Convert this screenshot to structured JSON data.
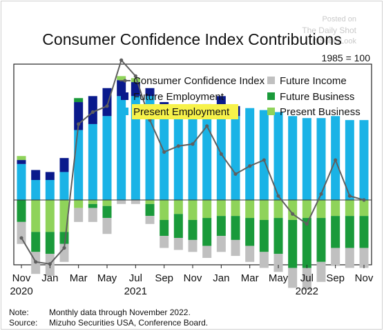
{
  "watermark": {
    "line1": "Posted on",
    "line2": "The Daily Shot",
    "line3": "@SoberLook"
  },
  "chart_data": {
    "type": "bar",
    "title": "Consumer Confidence Index Contributions",
    "subtitle": "1985 = 100",
    "months": [
      "Nov 2020",
      "Dec 2020",
      "Jan 2021",
      "Feb 2021",
      "Mar 2021",
      "Apr 2021",
      "May 2021",
      "Jun 2021",
      "Jul 2021",
      "Aug 2021",
      "Sep 2021",
      "Oct 2021",
      "Nov 2021",
      "Dec 2021",
      "Jan 2022",
      "Feb 2022",
      "Mar 2022",
      "Apr 2022",
      "May 2022",
      "Jun 2022",
      "Jul 2022",
      "Aug 2022",
      "Sep 2022",
      "Oct 2022",
      "Nov 2022"
    ],
    "x_ticks": [
      {
        "index": 0,
        "label": "Nov",
        "year": "2020"
      },
      {
        "index": 2,
        "label": "Jan",
        "year": ""
      },
      {
        "index": 4,
        "label": "Mar",
        "year": ""
      },
      {
        "index": 6,
        "label": "May",
        "year": ""
      },
      {
        "index": 8,
        "label": "Jul",
        "year": "2021"
      },
      {
        "index": 10,
        "label": "Sep",
        "year": ""
      },
      {
        "index": 12,
        "label": "Nov",
        "year": ""
      },
      {
        "index": 14,
        "label": "Jan",
        "year": ""
      },
      {
        "index": 16,
        "label": "Mar",
        "year": ""
      },
      {
        "index": 18,
        "label": "May",
        "year": ""
      },
      {
        "index": 20,
        "label": "Jul",
        "year": "2022"
      },
      {
        "index": 22,
        "label": "Sep",
        "year": ""
      },
      {
        "index": 24,
        "label": "Nov",
        "year": ""
      }
    ],
    "ylim": [
      -48,
      68
    ],
    "series": [
      {
        "name": "Present Employment",
        "color": "#1ab3e6",
        "kind": "bar",
        "values": [
          18,
          10,
          10,
          14,
          35,
          38,
          42,
          52,
          52,
          52,
          45,
          42,
          44,
          44,
          43,
          42,
          46,
          45,
          44,
          42,
          41,
          41,
          42,
          40,
          40
        ]
      },
      {
        "name": "Future Employment",
        "color": "#0a1a8c",
        "kind": "bar",
        "values": [
          2,
          5,
          4,
          7,
          14,
          14,
          14,
          8,
          7,
          4,
          4,
          2,
          4,
          4,
          9,
          5,
          0,
          0,
          0,
          0,
          0,
          0,
          0,
          0,
          0
        ]
      },
      {
        "name": "Present Business",
        "color": "#8fd35a",
        "kind": "bar",
        "values": [
          2,
          -16,
          -16,
          -16,
          -4,
          -2,
          -3,
          2,
          2,
          -2,
          -10,
          -7,
          -10,
          -9,
          -8,
          -8,
          -9,
          -10,
          -9,
          -10,
          -9,
          -9,
          -8,
          -8,
          -8
        ]
      },
      {
        "name": "Future Business",
        "color": "#1a9a3a",
        "kind": "bar",
        "values": [
          -11,
          -10,
          -11,
          -6,
          2,
          -2,
          -6,
          0,
          0,
          -6,
          -8,
          -12,
          -10,
          -14,
          -10,
          -12,
          -14,
          -16,
          -18,
          -24,
          -25,
          -22,
          -16,
          -16,
          -16
        ]
      },
      {
        "name": "Future Income",
        "color": "#c0c0c0",
        "kind": "bar",
        "values": [
          -11,
          -11,
          -11,
          -9,
          -7,
          -7,
          -8,
          -2,
          -2,
          -4,
          -6,
          -6,
          -6,
          -6,
          -8,
          -8,
          -8,
          -8,
          -9,
          -10,
          -11,
          -10,
          -9,
          -10,
          -10
        ]
      },
      {
        "name": "Consumer Confidence Index",
        "color": "#5f5f5f",
        "kind": "line",
        "values": [
          -19,
          -31,
          -32,
          -24,
          38,
          44,
          47,
          70,
          62,
          40,
          24,
          27,
          28,
          37,
          23,
          13,
          17,
          20,
          2,
          -7,
          -12,
          3,
          20,
          2,
          0
        ]
      }
    ]
  },
  "footnotes": [
    {
      "key": "Note:",
      "text": "Monthly data through November 2022."
    },
    {
      "key": "Source:",
      "text": "Mizuho Securities USA, Conference Board."
    }
  ]
}
